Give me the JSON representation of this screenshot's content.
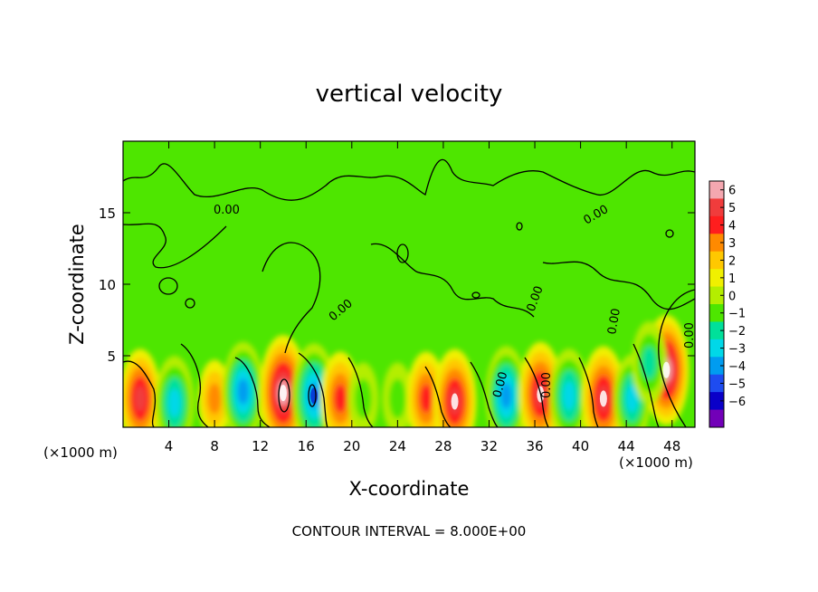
{
  "chart_data": {
    "type": "heatmap",
    "title": "vertical velocity",
    "xlabel": "X-coordinate",
    "ylabel": "Z-coordinate",
    "x_unit": "(×1000 m)",
    "x_unit_right": "(×1000 m)",
    "xlim": [
      0,
      50
    ],
    "ylim": [
      0,
      20
    ],
    "x_ticks": [
      4,
      8,
      12,
      16,
      20,
      24,
      28,
      32,
      36,
      40,
      44,
      48
    ],
    "y_ticks": [
      5,
      10,
      15
    ],
    "colorbar": {
      "ticks": [
        6,
        5,
        4,
        3,
        2,
        1,
        0,
        -1,
        -2,
        -3,
        -4,
        -5,
        -6
      ],
      "colors": [
        "#f4a7b0",
        "#f03c3c",
        "#ff1e1e",
        "#ff8a00",
        "#ffc800",
        "#f0f000",
        "#b4ee00",
        "#4ee600",
        "#00e09a",
        "#00d8e8",
        "#009cf0",
        "#1e4cf0",
        "#0a00c8",
        "#7200b8"
      ]
    },
    "contour_label": "0.00",
    "footer": "CONTOUR INTERVAL = 8.000E+00",
    "features": [
      {
        "x": 1.5,
        "z": 2.0,
        "value": 4.5
      },
      {
        "x": 4.5,
        "z": 1.7,
        "value": -4
      },
      {
        "x": 8.0,
        "z": 2.0,
        "value": 2.5
      },
      {
        "x": 10.5,
        "z": 2.5,
        "value": -4.5
      },
      {
        "x": 14.0,
        "z": 2.4,
        "value": 6
      },
      {
        "x": 16.7,
        "z": 2.2,
        "value": -5
      },
      {
        "x": 19.0,
        "z": 2.0,
        "value": 4
      },
      {
        "x": 21.0,
        "z": 2.0,
        "value": -2
      },
      {
        "x": 24.0,
        "z": 2.0,
        "value": -2
      },
      {
        "x": 26.5,
        "z": 2.0,
        "value": 4
      },
      {
        "x": 29.0,
        "z": 1.8,
        "value": 5
      },
      {
        "x": 33.5,
        "z": 2.2,
        "value": -4.5
      },
      {
        "x": 36.5,
        "z": 2.3,
        "value": 5
      },
      {
        "x": 39.0,
        "z": 2.2,
        "value": -4
      },
      {
        "x": 42.0,
        "z": 2.0,
        "value": 5
      },
      {
        "x": 44.5,
        "z": 2.0,
        "value": -3.5
      },
      {
        "x": 47.5,
        "z": 4.0,
        "value": 5.5
      },
      {
        "x": 46.0,
        "z": 4.5,
        "value": -3
      }
    ]
  }
}
